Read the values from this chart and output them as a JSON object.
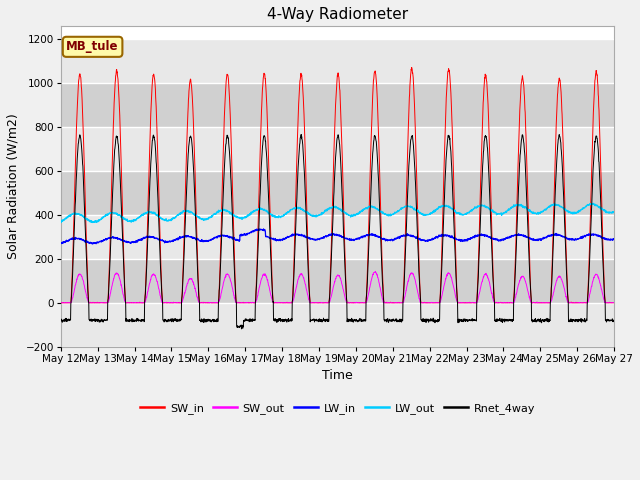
{
  "title": "4-Way Radiometer",
  "xlabel": "Time",
  "ylabel": "Solar Radiation (W/m2)",
  "ylim": [
    -200,
    1260
  ],
  "yticks": [
    -200,
    0,
    200,
    400,
    600,
    800,
    1000,
    1200
  ],
  "x_labels": [
    "May 12",
    "May 13",
    "May 14",
    "May 15",
    "May 16",
    "May 17",
    "May 18",
    "May 19",
    "May 20",
    "May 21",
    "May 22",
    "May 23",
    "May 24",
    "May 25",
    "May 26",
    "May 27"
  ],
  "station_label": "MB_tule",
  "colors": {
    "SW_in": "#ff0000",
    "SW_out": "#ff00ff",
    "LW_in": "#0000ff",
    "LW_out": "#00ccff",
    "Rnet_4way": "#000000"
  },
  "legend_entries": [
    "SW_in",
    "SW_out",
    "LW_in",
    "LW_out",
    "Rnet_4way"
  ],
  "fig_bg": "#f0f0f0",
  "plot_bg_light": "#e8e8e8",
  "plot_bg_dark": "#d0d0d0"
}
